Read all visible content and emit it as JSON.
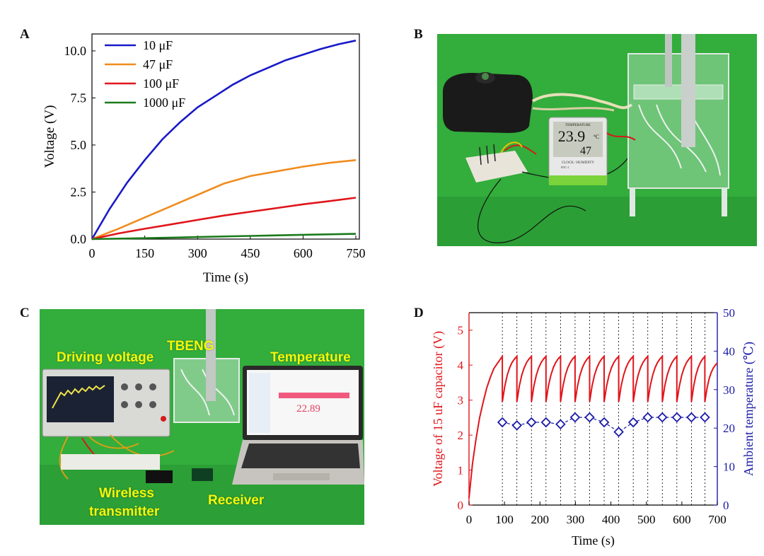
{
  "panels": {
    "a": "A",
    "b": "B",
    "c": "C",
    "d": "D"
  },
  "chart_data": [
    {
      "type": "line",
      "panel": "A",
      "xlabel": "Time (s)",
      "ylabel": "Voltage (V)",
      "xlim": [
        0,
        760
      ],
      "ylim": [
        0,
        10.9
      ],
      "xticks": [
        0,
        150,
        300,
        450,
        600,
        750
      ],
      "yticks": [
        0.0,
        2.5,
        5.0,
        7.5,
        10.0
      ],
      "ytick_labels": [
        "0.0",
        "2.5",
        "5.0",
        "7.5",
        "10.0"
      ],
      "legend_position": "top-left",
      "series": [
        {
          "name": "10 μF",
          "color": "#1919c8",
          "x": [
            0,
            50,
            100,
            150,
            200,
            250,
            300,
            350,
            400,
            450,
            500,
            550,
            600,
            650,
            700,
            750
          ],
          "y": [
            0,
            1.6,
            3.0,
            4.2,
            5.3,
            6.2,
            7.0,
            7.6,
            8.2,
            8.7,
            9.1,
            9.5,
            9.8,
            10.1,
            10.35,
            10.55
          ]
        },
        {
          "name": "47 μF",
          "color": "#f08c1e",
          "x": [
            0,
            75,
            150,
            225,
            300,
            375,
            450,
            525,
            600,
            675,
            750
          ],
          "y": [
            0,
            0.55,
            1.15,
            1.75,
            2.35,
            2.95,
            3.35,
            3.6,
            3.85,
            4.05,
            4.2
          ]
        },
        {
          "name": "100 μF",
          "color": "#e0151b",
          "x": [
            0,
            75,
            150,
            225,
            300,
            375,
            450,
            525,
            600,
            675,
            750
          ],
          "y": [
            0,
            0.3,
            0.55,
            0.78,
            1.02,
            1.25,
            1.45,
            1.65,
            1.85,
            2.02,
            2.2
          ]
        },
        {
          "name": "1000 μF",
          "color": "#1b7a1b",
          "x": [
            0,
            150,
            300,
            450,
            600,
            750
          ],
          "y": [
            0,
            0.05,
            0.11,
            0.17,
            0.23,
            0.28
          ]
        }
      ]
    },
    {
      "type": "line",
      "panel": "D",
      "xlabel": "Time (s)",
      "ylabel_left": "Voltage of 15 uF capacitor (V)",
      "ylabel_right": "Ambient temperature (℃)",
      "xlim": [
        0,
        700
      ],
      "ylim_left": [
        0,
        5.5
      ],
      "ylim_right": [
        0,
        50
      ],
      "xticks": [
        0,
        100,
        200,
        300,
        400,
        500,
        600,
        700
      ],
      "yticks_left": [
        0,
        1,
        2,
        3,
        4,
        5
      ],
      "yticks_right": [
        0,
        10,
        20,
        30,
        40,
        50
      ],
      "left_color": "#e0151b",
      "right_color": "#1a1aa8",
      "dashed_verticals_x": [
        94,
        135,
        176,
        217,
        258,
        299,
        340,
        381,
        422,
        463,
        504,
        545,
        586,
        627,
        665
      ],
      "voltage_charge_curve": {
        "x": [
          0,
          10,
          20,
          30,
          40,
          50,
          60,
          70,
          80,
          94
        ],
        "y": [
          0.2,
          1.2,
          1.9,
          2.5,
          2.95,
          3.35,
          3.65,
          3.9,
          4.05,
          4.25
        ]
      },
      "voltage_cycle": {
        "peak": 4.25,
        "trough": 2.95,
        "period_s": 41
      },
      "temperature_series": {
        "name": "Ambient temperature",
        "x": [
          94,
          135,
          176,
          217,
          258,
          299,
          340,
          381,
          422,
          463,
          504,
          545,
          586,
          627,
          665
        ],
        "y": [
          21.5,
          20.7,
          21.5,
          21.5,
          21.0,
          22.8,
          22.8,
          21.5,
          19.0,
          21.5,
          22.8,
          22.8,
          22.8,
          22.8,
          22.8
        ]
      }
    }
  ],
  "photo_b": {
    "display_lines": [
      "23.9",
      "47"
    ],
    "display_unit": "°C",
    "display_tag": "TEMPERATURE",
    "display_caption": "CLOCK / HUMIDITY",
    "display_model": "HTC-1"
  },
  "photo_c": {
    "labels": {
      "driving_voltage": "Driving voltage",
      "tbeng": "TBENG",
      "temperature": "Temperature",
      "wireless": "Wireless",
      "transmitter": "transmitter",
      "receiver": "Receiver"
    },
    "laptop_reading": "22.89"
  },
  "colors": {
    "green_screen": "#2fa83a",
    "label_yellow": "#f4f70a"
  }
}
